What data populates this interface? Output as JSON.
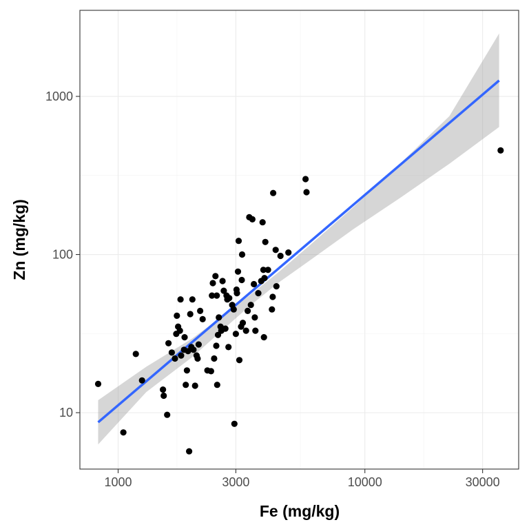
{
  "chart_data": {
    "type": "scatter",
    "xlabel": "Fe (mg/kg)",
    "ylabel": "Zn (mg/kg)",
    "x_scale": "log10",
    "y_scale": "log10",
    "xlim": [
      700,
      42000
    ],
    "ylim": [
      4.4,
      3500
    ],
    "x_ticks": [
      {
        "value": 1000,
        "label": "1000"
      },
      {
        "value": 3000,
        "label": "3000"
      },
      {
        "value": 10000,
        "label": "10000"
      },
      {
        "value": 30000,
        "label": "30000"
      }
    ],
    "x_minor": [
      1732,
      5477,
      17321
    ],
    "y_ticks": [
      {
        "value": 10,
        "label": "10"
      },
      {
        "value": 100,
        "label": "100"
      },
      {
        "value": 1000,
        "label": "1000"
      }
    ],
    "y_minor": [
      3.16,
      31.6,
      316
    ],
    "grid": true,
    "colors": {
      "points": "#000000",
      "fit_line": "#3366FF",
      "confidence_band": "#999999",
      "panel_border": "#333333",
      "grid_major": "#ebebeb",
      "grid_minor": "#f2f2f2"
    },
    "smooth": {
      "method": "linear fit (log-log)",
      "x": [
        830,
        35000
      ],
      "y": [
        8.7,
        1260
      ],
      "ci_x": [
        830,
        1300,
        2000,
        2600,
        3400,
        4500,
        6000,
        9000,
        14000,
        22000,
        35000
      ],
      "ci_lower": [
        6.3,
        13.5,
        22.5,
        32.5,
        47.0,
        67.0,
        92.0,
        145.0,
        230.0,
        375.0,
        640.0
      ],
      "ci_upper": [
        12.0,
        19.5,
        29.5,
        40.0,
        55.0,
        78.0,
        115.0,
        200.0,
        380.0,
        750.0,
        2500.0
      ]
    },
    "points": [
      {
        "x": 830,
        "y": 15.2
      },
      {
        "x": 1050,
        "y": 7.5
      },
      {
        "x": 1180,
        "y": 23.5
      },
      {
        "x": 1250,
        "y": 16
      },
      {
        "x": 1520,
        "y": 14
      },
      {
        "x": 1530,
        "y": 12.8
      },
      {
        "x": 1580,
        "y": 9.7
      },
      {
        "x": 1600,
        "y": 27.5
      },
      {
        "x": 1650,
        "y": 24
      },
      {
        "x": 1700,
        "y": 22
      },
      {
        "x": 1720,
        "y": 31.5
      },
      {
        "x": 1730,
        "y": 41
      },
      {
        "x": 1750,
        "y": 35
      },
      {
        "x": 1780,
        "y": 33
      },
      {
        "x": 1790,
        "y": 52
      },
      {
        "x": 1800,
        "y": 23
      },
      {
        "x": 1850,
        "y": 25
      },
      {
        "x": 1860,
        "y": 30
      },
      {
        "x": 1880,
        "y": 15
      },
      {
        "x": 1900,
        "y": 18.5
      },
      {
        "x": 1920,
        "y": 24.5
      },
      {
        "x": 1940,
        "y": 5.7
      },
      {
        "x": 1960,
        "y": 42
      },
      {
        "x": 1980,
        "y": 26
      },
      {
        "x": 2000,
        "y": 52
      },
      {
        "x": 2020,
        "y": 25
      },
      {
        "x": 2050,
        "y": 14.8
      },
      {
        "x": 2080,
        "y": 23
      },
      {
        "x": 2100,
        "y": 22
      },
      {
        "x": 2120,
        "y": 27
      },
      {
        "x": 2150,
        "y": 44
      },
      {
        "x": 2200,
        "y": 39
      },
      {
        "x": 2300,
        "y": 18.5
      },
      {
        "x": 2380,
        "y": 18.3
      },
      {
        "x": 2400,
        "y": 55
      },
      {
        "x": 2420,
        "y": 66
      },
      {
        "x": 2450,
        "y": 22
      },
      {
        "x": 2480,
        "y": 73
      },
      {
        "x": 2500,
        "y": 26.5
      },
      {
        "x": 2510,
        "y": 55
      },
      {
        "x": 2520,
        "y": 15
      },
      {
        "x": 2540,
        "y": 31
      },
      {
        "x": 2560,
        "y": 40
      },
      {
        "x": 2600,
        "y": 35
      },
      {
        "x": 2620,
        "y": 33
      },
      {
        "x": 2650,
        "y": 68
      },
      {
        "x": 2680,
        "y": 59
      },
      {
        "x": 2720,
        "y": 34
      },
      {
        "x": 2750,
        "y": 55
      },
      {
        "x": 2770,
        "y": 52
      },
      {
        "x": 2800,
        "y": 26
      },
      {
        "x": 2820,
        "y": 53
      },
      {
        "x": 2900,
        "y": 48
      },
      {
        "x": 2940,
        "y": 45
      },
      {
        "x": 2960,
        "y": 8.5
      },
      {
        "x": 3000,
        "y": 31.5
      },
      {
        "x": 3020,
        "y": 60
      },
      {
        "x": 3030,
        "y": 57
      },
      {
        "x": 3060,
        "y": 78
      },
      {
        "x": 3080,
        "y": 122
      },
      {
        "x": 3100,
        "y": 21.5
      },
      {
        "x": 3150,
        "y": 35
      },
      {
        "x": 3170,
        "y": 69
      },
      {
        "x": 3180,
        "y": 100
      },
      {
        "x": 3200,
        "y": 37
      },
      {
        "x": 3300,
        "y": 33
      },
      {
        "x": 3350,
        "y": 44
      },
      {
        "x": 3400,
        "y": 172
      },
      {
        "x": 3450,
        "y": 48
      },
      {
        "x": 3500,
        "y": 167
      },
      {
        "x": 3550,
        "y": 65
      },
      {
        "x": 3580,
        "y": 40
      },
      {
        "x": 3600,
        "y": 33
      },
      {
        "x": 3700,
        "y": 57
      },
      {
        "x": 3800,
        "y": 68
      },
      {
        "x": 3850,
        "y": 160
      },
      {
        "x": 3880,
        "y": 80
      },
      {
        "x": 3900,
        "y": 30
      },
      {
        "x": 3920,
        "y": 71
      },
      {
        "x": 3950,
        "y": 120
      },
      {
        "x": 4050,
        "y": 80
      },
      {
        "x": 4200,
        "y": 45
      },
      {
        "x": 4230,
        "y": 54
      },
      {
        "x": 4250,
        "y": 245
      },
      {
        "x": 4350,
        "y": 107
      },
      {
        "x": 4380,
        "y": 63
      },
      {
        "x": 4550,
        "y": 98
      },
      {
        "x": 4900,
        "y": 103
      },
      {
        "x": 5750,
        "y": 300
      },
      {
        "x": 5800,
        "y": 248
      },
      {
        "x": 35500,
        "y": 455
      }
    ]
  }
}
